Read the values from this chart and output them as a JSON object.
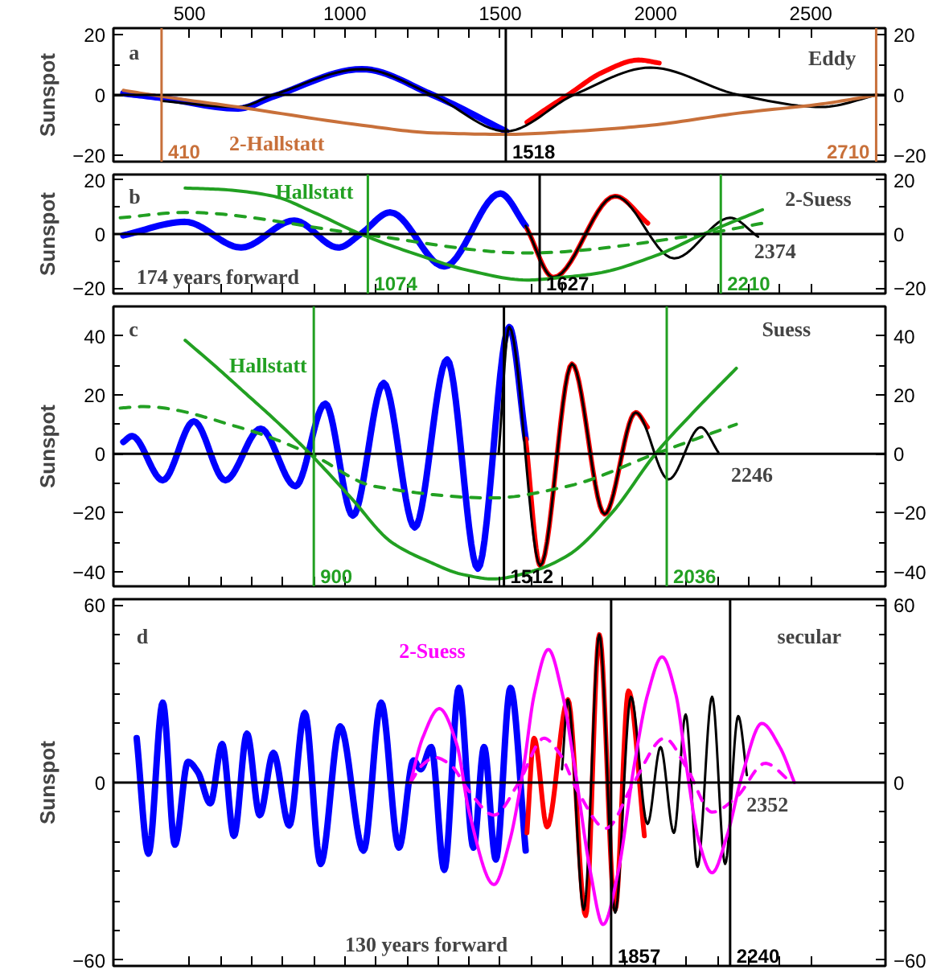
{
  "chart_data": [
    {
      "type": "line",
      "ylabel": "Sunspot",
      "xlim": [
        255,
        2740
      ],
      "xticks": [
        500,
        1000,
        1500,
        2000,
        2500
      ],
      "ylim": [
        -22,
        22
      ],
      "yticks": [
        -20,
        0,
        20
      ],
      "y2lim": [
        -22,
        22
      ],
      "y2ticks": [
        -20,
        0,
        20
      ],
      "series": [
        {
          "color": "#0000ff",
          "x": [
            287,
            410,
            656,
            770,
            1055,
            1282,
            1519
          ],
          "values": [
            0.5,
            -1,
            -4.5,
            -0.5,
            8.5,
            0,
            -12
          ]
        },
        {
          "color": "#ff0000",
          "x": [
            1586,
            1650,
            1718,
            1830,
            1946,
            2012
          ],
          "values": [
            -9,
            -4.5,
            0,
            7.5,
            11.5,
            10.5
          ]
        },
        {
          "color": "#000000",
          "x": [
            410,
            656,
            770,
            1055,
            1282,
            1519,
            1737,
            1984,
            2268,
            2534,
            2714
          ],
          "values": [
            -2,
            -4,
            0,
            8.5,
            0,
            -12,
            0,
            9,
            0,
            -4,
            0
          ]
        },
        {
          "color": "#c8703a",
          "name": "2-Hallstatt",
          "x": [
            287,
            410,
            656,
            1055,
            1282,
            1519,
            1737,
            1984,
            2268,
            2534,
            2714
          ],
          "values": [
            1.5,
            -0.5,
            -4,
            -10,
            -12.5,
            -13,
            -12,
            -10,
            -6,
            -3,
            0
          ]
        }
      ],
      "ref_lines": [
        {
          "axis": "y",
          "value": 0,
          "color": "#000000"
        },
        {
          "axis": "x",
          "value": 410,
          "label": "410",
          "color": "#c8703a"
        },
        {
          "axis": "x",
          "value": 2710,
          "label": "2710",
          "color": "#c8703a"
        },
        {
          "axis": "x",
          "value": 1518,
          "label": "1518",
          "color": "#000000"
        }
      ],
      "annotations": [
        "a",
        "Eddy"
      ]
    },
    {
      "type": "line",
      "ylabel": "Sunspot",
      "xlim": [
        255,
        2740
      ],
      "xticks": [
        500,
        1000,
        1500,
        2000,
        2500
      ],
      "ylim": [
        -22,
        22
      ],
      "yticks": [
        -20,
        0,
        20
      ],
      "y2lim": [
        -22,
        22
      ],
      "y2ticks": [
        -20,
        0,
        20
      ],
      "tick_labels": "y",
      "series": [
        {
          "color": "#0000ff",
          "x": [
            287,
            486,
            666,
            837,
            979,
            1051,
            1146,
            1320,
            1500,
            1582
          ],
          "values": [
            -0.5,
            4.5,
            -5,
            5,
            -5,
            0,
            8,
            -12,
            15,
            3
          ]
        },
        {
          "color": "#ff0000",
          "x": [
            1586,
            1671,
            1870,
            1975
          ],
          "values": [
            2,
            -16,
            14,
            4
          ]
        },
        {
          "color": "#000000",
          "x": [
            1582,
            1671,
            1870,
            2060,
            2240,
            2330
          ],
          "values": [
            3,
            -16,
            14,
            -9,
            6,
            -1
          ]
        },
        {
          "color": "#22a022",
          "name": "Hallstatt",
          "x": [
            486,
            600,
            770,
            900,
            1051,
            1243,
            1400,
            1586,
            1700,
            1813,
            2000,
            2154,
            2344
          ],
          "values": [
            17,
            16.5,
            14,
            8,
            0,
            -8,
            -13.5,
            -17,
            -16,
            -14.5,
            -8,
            0,
            9
          ]
        },
        {
          "color": "#22a022",
          "line_style": "dashed",
          "x": [
            277,
            486,
            1051,
            1586,
            2154,
            2344
          ],
          "values": [
            6,
            8,
            0,
            -7,
            0,
            4
          ]
        }
      ],
      "ref_lines": [
        {
          "axis": "y",
          "value": 0,
          "color": "#000000"
        },
        {
          "axis": "x",
          "value": 1074,
          "label": "1074",
          "color": "#22a022"
        },
        {
          "axis": "x",
          "value": 2210,
          "label": "2210",
          "color": "#22a022"
        },
        {
          "axis": "x",
          "value": 1627,
          "label": "1627",
          "color": "#000000"
        }
      ],
      "annotations": [
        "b",
        "2-Suess",
        "174 years forward",
        "2374"
      ]
    },
    {
      "type": "line",
      "ylabel": "Sunspot",
      "xlim": [
        255,
        2740
      ],
      "xticks": [
        500,
        1000,
        1500,
        2000,
        2500
      ],
      "ylim": [
        -45,
        50
      ],
      "yticks": [
        -40,
        -20,
        0,
        20,
        40
      ],
      "y2lim": [
        -45,
        50
      ],
      "y2ticks": [
        -40,
        -20,
        0,
        20,
        40
      ],
      "tick_labels": "y",
      "series": [
        {
          "color": "#0000ff",
          "x": [
            287,
            315,
            414,
            514,
            615,
            729,
            841,
            937,
            1026,
            1125,
            1225,
            1329,
            1428,
            1529,
            1582
          ],
          "values": [
            4,
            6,
            -9,
            11,
            -9,
            8.5,
            -11,
            17,
            -21,
            24,
            -25,
            32,
            -39,
            43,
            5
          ]
        },
        {
          "color": "#ff0000",
          "x": [
            1582,
            1629,
            1731,
            1836,
            1936,
            1974
          ],
          "values": [
            5,
            -38,
            30.5,
            -20.5,
            14,
            9
          ]
        },
        {
          "color": "#000000",
          "x": [
            1495,
            1529,
            1629,
            1731,
            1836,
            1936,
            2042,
            2145,
            2202
          ],
          "values": [
            0,
            43,
            -38,
            30.5,
            -20.5,
            14,
            -8.7,
            9,
            0.5
          ]
        },
        {
          "color": "#22a022",
          "name": "Hallstatt",
          "x": [
            486,
            580,
            675,
            780,
            888,
            1020,
            1150,
            1268,
            1380,
            1477,
            1600,
            1718,
            1860,
            2000,
            2130,
            2260
          ],
          "values": [
            38.5,
            30,
            21,
            11,
            0,
            -15,
            -30,
            -36.5,
            -41,
            -42.5,
            -40,
            -34.5,
            -20,
            0,
            15,
            29
          ]
        },
        {
          "color": "#22a022",
          "line_style": "dashed",
          "x": [
            277,
            353,
            675,
            888,
            1093,
            1477,
            1718,
            2000,
            2260
          ],
          "values": [
            15.5,
            16,
            8.5,
            0,
            -11,
            -15,
            -11,
            0,
            10
          ]
        }
      ],
      "ref_lines": [
        {
          "axis": "y",
          "value": 0,
          "color": "#000000"
        },
        {
          "axis": "x",
          "value": 900,
          "label": "900",
          "color": "#22a022"
        },
        {
          "axis": "x",
          "value": 2036,
          "label": "2036",
          "color": "#22a022"
        },
        {
          "axis": "x",
          "value": 1512,
          "label": "1512",
          "color": "#000000"
        }
      ],
      "annotations": [
        "c",
        "Suess",
        "2246"
      ]
    },
    {
      "type": "line",
      "ylabel": "Sunspot",
      "xlim": [
        255,
        2740
      ],
      "xticks": [
        500,
        1000,
        1500,
        2000,
        2500
      ],
      "ylim": [
        -62,
        62
      ],
      "yticks": [
        -60,
        0,
        60
      ],
      "y2lim": [
        -62,
        62
      ],
      "y2ticks": [
        -60,
        0,
        60
      ],
      "tick_labels": "y",
      "series": [
        {
          "color": "#0000ff",
          "x": [
            330,
            368,
            414,
            453,
            495,
            527,
            567,
            605,
            643,
            685,
            726,
            770,
            821,
            871,
            922,
            985,
            1060,
            1117,
            1174,
            1221,
            1244,
            1278,
            1320,
            1367,
            1414,
            1448,
            1486,
            1533,
            1582
          ],
          "values": [
            15,
            -24,
            27,
            -21,
            7,
            3.5,
            -7,
            13,
            -18,
            16.5,
            -11,
            10,
            -14.5,
            23.5,
            -27.5,
            19,
            -23,
            27,
            -22,
            7.5,
            4.5,
            12,
            -29.5,
            32,
            -22,
            12,
            -26,
            32,
            -23
          ]
        },
        {
          "color": "#ff0000",
          "x": [
            1586,
            1609,
            1651,
            1718,
            1775,
            1819,
            1870,
            1913,
            1964
          ],
          "values": [
            -17,
            15,
            -15,
            28,
            -45,
            50,
            -43,
            31,
            -18
          ]
        },
        {
          "color": "#000000",
          "x": [
            1699,
            1718,
            1769,
            1819,
            1870,
            1921,
            1974,
            2016,
            2059,
            2097,
            2135,
            2182,
            2224,
            2266,
            2294
          ],
          "values": [
            4.5,
            28,
            -43,
            50,
            -44,
            29,
            -14,
            12,
            -17,
            23,
            -28.5,
            29,
            -27.5,
            22.5,
            2.5
          ]
        },
        {
          "color": "#ff00ff",
          "name": "2-Suess",
          "x": [
            1211,
            1250,
            1304,
            1360,
            1400,
            1480,
            1530,
            1575,
            1610,
            1655,
            1700,
            1740,
            1790,
            1831,
            1880,
            1930,
            1975,
            2021,
            2065,
            2100,
            2140,
            2182,
            2230,
            2280,
            2342,
            2400,
            2447
          ],
          "values": [
            0,
            15,
            25,
            13,
            -10,
            -34.5,
            -20,
            5,
            30,
            45,
            30,
            5,
            -30,
            -48,
            -30,
            5,
            30,
            42.5,
            30,
            5,
            -20,
            -30.5,
            -18,
            3,
            20,
            12,
            0
          ]
        },
        {
          "color": "#ff00ff",
          "line_style": "dashed",
          "x": [
            1211,
            1250,
            1290,
            1340,
            1400,
            1480,
            1560,
            1641,
            1690,
            1750,
            1840,
            1930,
            2029,
            2100,
            2182,
            2260,
            2353,
            2437
          ],
          "values": [
            0,
            6,
            8.5,
            6,
            -3,
            -11,
            0,
            15,
            10,
            -3,
            -15.5,
            0,
            15,
            5,
            -10,
            -5,
            6.5,
            0
          ]
        }
      ],
      "ref_lines": [
        {
          "axis": "y",
          "value": 0,
          "color": "#000000"
        },
        {
          "axis": "x",
          "value": 1857,
          "label": "1857",
          "color": "#000000"
        },
        {
          "axis": "x",
          "value": 2240,
          "label": "2240",
          "color": "#000000"
        }
      ],
      "annotations": [
        "d",
        "secular",
        "130 years forward",
        "2352"
      ]
    }
  ]
}
